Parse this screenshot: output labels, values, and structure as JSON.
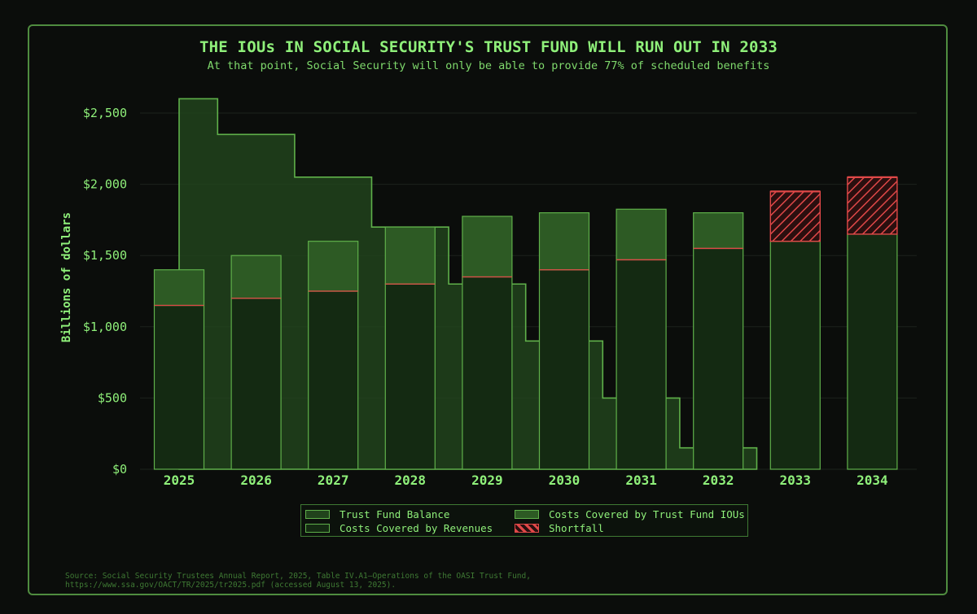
{
  "title": "THE IOUs IN SOCIAL SECURITY'S TRUST FUND WILL RUN OUT IN 2033",
  "subtitle": "At that point, Social Security will only be able to provide 77% of scheduled benefits",
  "source_line1": "Source: Social Security Trustees Annual Report, 2025, Table IV.A1—Operations of the OASI Trust Fund,",
  "source_line2": "https://www.ssa.gov/OACT/TR/2025/tr2025.pdf (accessed August 13, 2025).",
  "legend": {
    "trust_fund_balance": "Trust Fund Balance",
    "costs_iou": "Costs Covered by Trust Fund IOUs",
    "costs_revenue": "Costs Covered by Revenues",
    "shortfall": "Shortfall"
  },
  "colors": {
    "background": "#0b0d0b",
    "accent": "#8ff07a",
    "bar_revenue": "#142a12",
    "bar_iou": "#2d5a24",
    "trust_fund_area": "#21431c",
    "shortfall": "#e04848",
    "grid": "#1c221c"
  },
  "chart_data": {
    "type": "bar",
    "title": "THE IOUs IN SOCIAL SECURITY'S TRUST FUND WILL RUN OUT IN 2033",
    "subtitle": "At that point, Social Security will only be able to provide 77% of scheduled benefits",
    "ylabel": "Billions of dollars",
    "xlabel": "",
    "ylim": [
      0,
      2700
    ],
    "yticks": [
      0,
      500,
      1000,
      1500,
      2000,
      2500
    ],
    "ytick_labels": [
      "$0",
      "$500",
      "$1,000",
      "$1,500",
      "$2,000",
      "$2,500"
    ],
    "categories": [
      "2025",
      "2026",
      "2027",
      "2028",
      "2029",
      "2030",
      "2031",
      "2032",
      "2033",
      "2034"
    ],
    "series": [
      {
        "name": "Costs Covered by Revenues",
        "values": [
          1150,
          1200,
          1250,
          1300,
          1350,
          1400,
          1470,
          1550,
          1600,
          1650
        ]
      },
      {
        "name": "Costs Covered by Trust Fund IOUs",
        "values": [
          250,
          300,
          350,
          400,
          425,
          400,
          355,
          250,
          0,
          0
        ]
      },
      {
        "name": "Shortfall",
        "values": [
          0,
          0,
          0,
          0,
          0,
          0,
          0,
          0,
          350,
          400
        ]
      }
    ],
    "trust_fund_balance": {
      "name": "Trust Fund Balance",
      "step_x": [
        2025,
        2025.5,
        2026.5,
        2027.5,
        2028.5,
        2029.5,
        2030.5,
        2031.5,
        2032.5
      ],
      "values": [
        2600,
        2350,
        2050,
        1700,
        1300,
        900,
        500,
        150,
        0
      ]
    },
    "legend_position": "bottom-center",
    "grid": true
  }
}
